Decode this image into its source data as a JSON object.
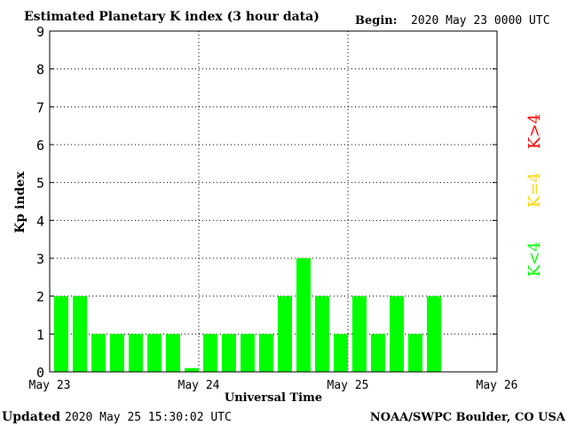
{
  "header": {
    "title": "Estimated Planetary K index (3 hour data)",
    "begin_label": "Begin:",
    "begin_value": "2020 May 23 0000 UTC"
  },
  "footer": {
    "updated_label": "Updated",
    "updated_value": "2020 May 25 15:30:02 UTC",
    "source": "NOAA/SWPC Boulder, CO USA"
  },
  "legend": {
    "high": "K>4",
    "mid": "K=4",
    "low": "K<4"
  },
  "colors": {
    "low": "#00ff00",
    "mid": "#ffd700",
    "high": "#ff0000"
  },
  "chart_data": {
    "type": "bar",
    "title": "Estimated Planetary K index (3 hour data)",
    "xlabel": "Universal Time",
    "ylabel": "Kp index",
    "ylim": [
      0,
      9
    ],
    "yticks": [
      "0",
      "1",
      "2",
      "3",
      "4",
      "5",
      "6",
      "7",
      "8",
      "9"
    ],
    "xticks": [
      "May 23",
      "May 24",
      "May 25",
      "May 26"
    ],
    "interval_hours": 3,
    "grid": true,
    "values": [
      2,
      2,
      1,
      1,
      1,
      1,
      1,
      0.1,
      1,
      1,
      1,
      1,
      2,
      3,
      2,
      1,
      2,
      1,
      2,
      1,
      2
    ]
  }
}
